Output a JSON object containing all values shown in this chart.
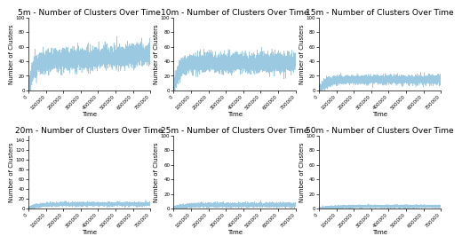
{
  "subplots": [
    {
      "title": "5m - Number of Clusters Over Time",
      "ylim": [
        0,
        100
      ],
      "yticks": [
        0,
        20,
        40,
        60,
        80,
        100
      ],
      "mean_level": 38,
      "noise_std": 7,
      "rise_time": 25000,
      "late_drift": 12,
      "color": "#7ab8d9"
    },
    {
      "title": "10m - Number of Clusters Over Time",
      "ylim": [
        0,
        100
      ],
      "yticks": [
        0,
        20,
        40,
        60,
        80,
        100
      ],
      "mean_level": 38,
      "noise_std": 6,
      "rise_time": 25000,
      "late_drift": 0,
      "color": "#7ab8d9"
    },
    {
      "title": "15m - Number of Clusters Over Time",
      "ylim": [
        0,
        100
      ],
      "yticks": [
        0,
        20,
        40,
        60,
        80,
        100
      ],
      "mean_level": 15,
      "noise_std": 3,
      "rise_time": 40000,
      "late_drift": 0,
      "color": "#7ab8d9"
    },
    {
      "title": "20m - Number of Clusters Over Time",
      "ylim": [
        0,
        150
      ],
      "yticks": [
        0,
        20,
        40,
        60,
        80,
        100,
        120,
        140
      ],
      "mean_level": 9,
      "noise_std": 2,
      "rise_time": 50000,
      "late_drift": 0,
      "color": "#7ab8d9"
    },
    {
      "title": "25m - Number of Clusters Over Time",
      "ylim": [
        0,
        100
      ],
      "yticks": [
        0,
        20,
        40,
        60,
        80,
        100
      ],
      "mean_level": 5,
      "noise_std": 1.5,
      "rise_time": 60000,
      "late_drift": 0,
      "color": "#7ab8d9"
    },
    {
      "title": "50m - Number of Clusters Over Time",
      "ylim": [
        0,
        100
      ],
      "yticks": [
        0,
        20,
        40,
        60,
        80,
        100
      ],
      "mean_level": 3,
      "noise_std": 1,
      "rise_time": 80000,
      "late_drift": 0,
      "color": "#7ab8d9"
    }
  ],
  "xlim": [
    0,
    700000
  ],
  "xticks": [
    0,
    100000,
    200000,
    300000,
    400000,
    500000,
    600000,
    700000
  ],
  "xlabel": "Time",
  "ylabel": "Number of Clusters",
  "n_points": 4000,
  "background_color": "#ffffff",
  "title_fontsize": 6.5,
  "label_fontsize": 5,
  "tick_fontsize": 4,
  "linewidth": 0.4,
  "alpha": 0.75
}
